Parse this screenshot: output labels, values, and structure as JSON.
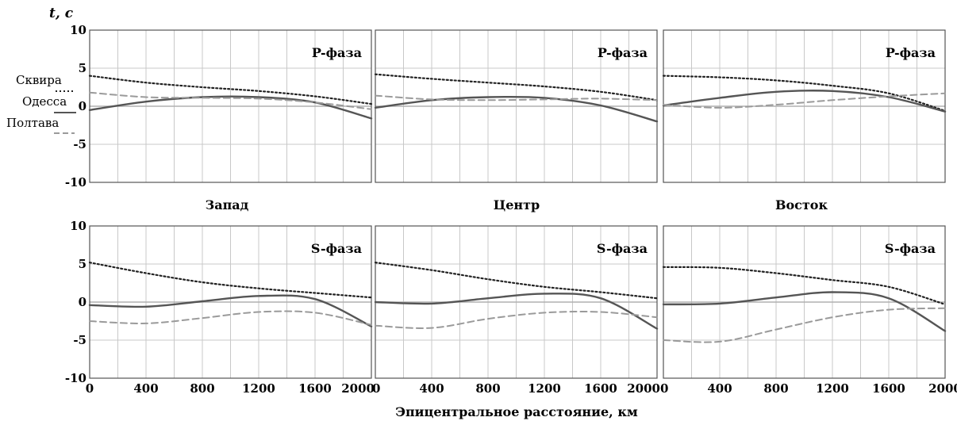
{
  "figure": {
    "y_axis_label": "t, с",
    "x_axis_label": "Эпицентральное расстояние, км",
    "column_titles": [
      "Запад",
      "Центр",
      "Восток"
    ],
    "legend": [
      {
        "name": "Сквира",
        "style": "dotted"
      },
      {
        "name": "Одесса",
        "style": "solid"
      },
      {
        "name": "Полтава",
        "style": "dashed"
      }
    ],
    "colors": {
      "solid": "#555555",
      "dashed": "#9a9a9a",
      "dotted": "#222222",
      "grid": "#c8c8c8",
      "zero": "#b0b0b0"
    },
    "x_ticks": [
      "0",
      "400",
      "800",
      "1200",
      "1600",
      "2000"
    ],
    "y_ticks": [
      "10",
      "5",
      "0",
      "-5",
      "-10"
    ]
  },
  "chart_data": [
    {
      "type": "line",
      "panel": "P-фаза",
      "column": "Запад",
      "xlim": [
        0,
        2000
      ],
      "ylim": [
        -10,
        10
      ],
      "grid": true,
      "x": [
        0,
        400,
        800,
        1200,
        1600,
        2000
      ],
      "series": [
        {
          "name": "Сквира",
          "style": "dotted",
          "values": [
            4.0,
            3.1,
            2.5,
            2.0,
            1.3,
            0.3
          ]
        },
        {
          "name": "Одесса",
          "style": "solid",
          "values": [
            -0.5,
            0.6,
            1.2,
            1.2,
            0.5,
            -1.6
          ]
        },
        {
          "name": "Полтава",
          "style": "dashed",
          "values": [
            1.8,
            1.2,
            1.1,
            1.0,
            0.5,
            -0.4
          ]
        }
      ]
    },
    {
      "type": "line",
      "panel": "P-фаза",
      "column": "Центр",
      "xlim": [
        0,
        2000
      ],
      "ylim": [
        -10,
        10
      ],
      "grid": true,
      "x": [
        0,
        400,
        800,
        1200,
        1600,
        2000
      ],
      "series": [
        {
          "name": "Сквира",
          "style": "dotted",
          "values": [
            4.2,
            3.6,
            3.1,
            2.6,
            1.9,
            0.8
          ]
        },
        {
          "name": "Одесса",
          "style": "solid",
          "values": [
            -0.2,
            0.8,
            1.2,
            1.1,
            0.1,
            -2.0
          ]
        },
        {
          "name": "Полтава",
          "style": "dashed",
          "values": [
            1.4,
            0.9,
            0.8,
            0.9,
            1.0,
            0.8
          ]
        }
      ]
    },
    {
      "type": "line",
      "panel": "P-фаза",
      "column": "Восток",
      "xlim": [
        0,
        2000
      ],
      "ylim": [
        -10,
        10
      ],
      "grid": true,
      "x": [
        0,
        400,
        800,
        1200,
        1600,
        2000
      ],
      "series": [
        {
          "name": "Сквира",
          "style": "dotted",
          "values": [
            4.0,
            3.8,
            3.4,
            2.7,
            1.7,
            -0.6
          ]
        },
        {
          "name": "Одесса",
          "style": "solid",
          "values": [
            0.1,
            1.1,
            1.9,
            2.0,
            1.2,
            -0.7
          ]
        },
        {
          "name": "Полтава",
          "style": "dashed",
          "values": [
            0.2,
            -0.2,
            0.2,
            0.8,
            1.3,
            1.7
          ]
        }
      ]
    },
    {
      "type": "line",
      "panel": "S-фаза",
      "column": "Запад",
      "xlim": [
        0,
        2000
      ],
      "ylim": [
        -10,
        10
      ],
      "grid": true,
      "x": [
        0,
        400,
        800,
        1200,
        1600,
        2000
      ],
      "series": [
        {
          "name": "Сквира",
          "style": "dotted",
          "values": [
            5.2,
            3.8,
            2.6,
            1.8,
            1.2,
            0.6
          ]
        },
        {
          "name": "Одесса",
          "style": "solid",
          "values": [
            -0.4,
            -0.6,
            0.1,
            0.8,
            0.4,
            -3.2
          ]
        },
        {
          "name": "Полтава",
          "style": "dashed",
          "values": [
            -2.5,
            -2.8,
            -2.1,
            -1.3,
            -1.4,
            -3.0
          ]
        }
      ]
    },
    {
      "type": "line",
      "panel": "S-фаза",
      "column": "Центр",
      "xlim": [
        0,
        2000
      ],
      "ylim": [
        -10,
        10
      ],
      "grid": true,
      "x": [
        0,
        400,
        800,
        1200,
        1600,
        2000
      ],
      "series": [
        {
          "name": "Сквира",
          "style": "dotted",
          "values": [
            5.2,
            4.2,
            3.0,
            2.0,
            1.3,
            0.5
          ]
        },
        {
          "name": "Одесса",
          "style": "solid",
          "values": [
            0.0,
            -0.2,
            0.5,
            1.1,
            0.5,
            -3.5
          ]
        },
        {
          "name": "Полтава",
          "style": "dashed",
          "values": [
            -3.1,
            -3.4,
            -2.2,
            -1.4,
            -1.3,
            -2.0
          ]
        }
      ]
    },
    {
      "type": "line",
      "panel": "S-фаза",
      "column": "Восток",
      "xlim": [
        0,
        2000
      ],
      "ylim": [
        -10,
        10
      ],
      "grid": true,
      "x": [
        0,
        400,
        800,
        1200,
        1600,
        2000
      ],
      "series": [
        {
          "name": "Сквира",
          "style": "dotted",
          "values": [
            4.6,
            4.5,
            3.8,
            2.9,
            2.0,
            -0.3
          ]
        },
        {
          "name": "Одесса",
          "style": "solid",
          "values": [
            -0.3,
            -0.2,
            0.6,
            1.3,
            0.5,
            -3.8
          ]
        },
        {
          "name": "Полтава",
          "style": "dashed",
          "values": [
            -5.0,
            -5.2,
            -3.6,
            -2.0,
            -1.0,
            -0.8
          ]
        }
      ]
    }
  ]
}
